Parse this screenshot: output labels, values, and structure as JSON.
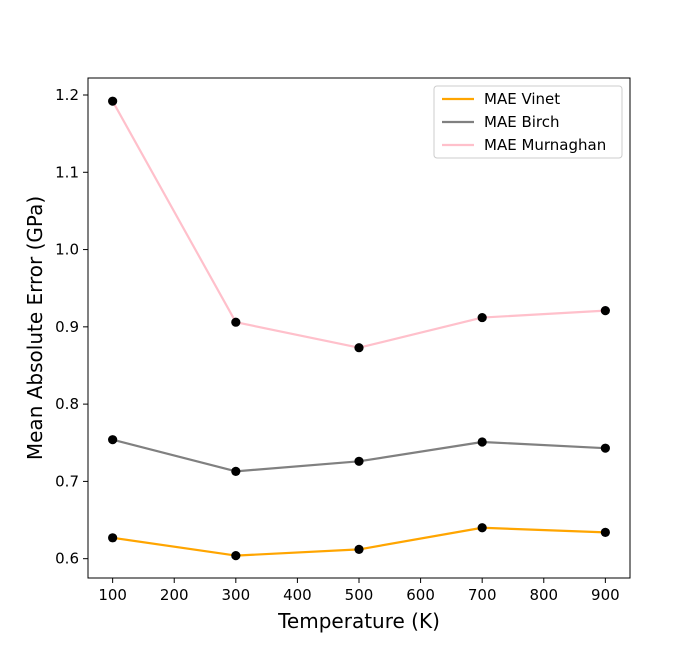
{
  "chart_data": {
    "type": "line",
    "title": "",
    "xlabel": "Temperature (K)",
    "ylabel": "Mean Absolute Error (GPa)",
    "x": [
      100,
      300,
      500,
      700,
      900
    ],
    "xlim": [
      60,
      940
    ],
    "ylim": [
      0.575,
      1.222
    ],
    "xticks": [
      100,
      200,
      300,
      400,
      500,
      600,
      700,
      800,
      900
    ],
    "yticks": [
      0.6,
      0.7,
      0.8,
      0.9,
      1.0,
      1.1,
      1.2
    ],
    "xtick_labels": [
      "100",
      "200",
      "300",
      "400",
      "500",
      "600",
      "700",
      "800",
      "900"
    ],
    "ytick_labels": [
      "0.6",
      "0.7",
      "0.8",
      "0.9",
      "1.0",
      "1.1",
      "1.2"
    ],
    "grid": false,
    "legend_position": "top-right",
    "marker_color": "#000000",
    "series": [
      {
        "name": "MAE Vinet",
        "color": "#ffa500",
        "values": [
          0.627,
          0.604,
          0.612,
          0.64,
          0.634
        ]
      },
      {
        "name": "MAE Birch",
        "color": "#808080",
        "values": [
          0.754,
          0.713,
          0.726,
          0.751,
          0.743
        ]
      },
      {
        "name": "MAE Murnaghan",
        "color": "#ffc0cb",
        "values": [
          1.192,
          0.906,
          0.873,
          0.912,
          0.921
        ]
      }
    ]
  }
}
